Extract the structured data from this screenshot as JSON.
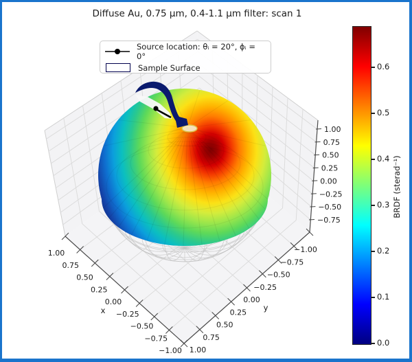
{
  "frame": {
    "border_color": "#1a74cc",
    "background": "#ffffff"
  },
  "title": "Diffuse Au, 0.75 μm, 0.4-1.1 μm filter: scan 1",
  "legend": {
    "source_label": "Source location: θᵢ = 20°, ϕᵢ = 0°",
    "surface_label": "Sample Surface",
    "surface_swatch_color": "#000080",
    "marker_color": "#000000"
  },
  "axes": {
    "x_label": "x",
    "y_label": "y",
    "x_ticks": [
      "1.00",
      "0.75",
      "0.50",
      "0.25",
      "0.00",
      "−0.25",
      "−0.50",
      "−0.75",
      "−1.00"
    ],
    "y_ticks": [
      "−1.00",
      "−0.75",
      "−0.50",
      "−0.25",
      "0.00",
      "0.25",
      "0.50",
      "0.75",
      "1.00"
    ],
    "z_ticks": [
      "1.00",
      "0.75",
      "0.50",
      "0.25",
      "0.00",
      "−0.25",
      "−0.50",
      "−0.75"
    ]
  },
  "colorbar": {
    "label": "BRDF (sterad⁻¹)",
    "ticks": [
      "0.6",
      "0.5",
      "0.4",
      "0.3",
      "0.2",
      "0.1",
      "0.0"
    ],
    "colormap": "jet",
    "vmin": 0.0,
    "vmax": 0.69
  },
  "chart_data": {
    "type": "3d_surface_hemisphere",
    "title": "Diffuse Au, 0.75 μm, 0.4-1.1 μm filter: scan 1",
    "quantity": "BRDF (sterad⁻¹)",
    "surface": "BRDF value mapped as color (jet colormap) over the upper unit hemisphere of reflection directions; gray wireframe shows lower unit hemisphere",
    "source_location": {
      "theta_i_deg": 20,
      "phi_i_deg": 0
    },
    "colormap": "jet",
    "color_range": [
      0.0,
      0.69
    ],
    "colorbar_ticks": [
      0.0,
      0.1,
      0.2,
      0.3,
      0.4,
      0.5,
      0.6
    ],
    "peak": {
      "value_approx": 0.69,
      "location": "specular lobe, θ≈20°–25° off zenith at φ≈180° (opposite the source azimuth)"
    },
    "minimum": {
      "value_approx": 0.0,
      "location": "grazing directions near φ≈0° (source side of hemisphere)"
    },
    "axes": {
      "x_range": [
        -1,
        1
      ],
      "y_range": [
        -1,
        1
      ],
      "z_tick_range": [
        -0.75,
        1.0
      ],
      "x_label": "x",
      "y_label": "y"
    },
    "legend_entries": [
      "Source location: θᵢ = 20°, ϕᵢ = 0°",
      "Sample Surface"
    ],
    "grid": true
  }
}
